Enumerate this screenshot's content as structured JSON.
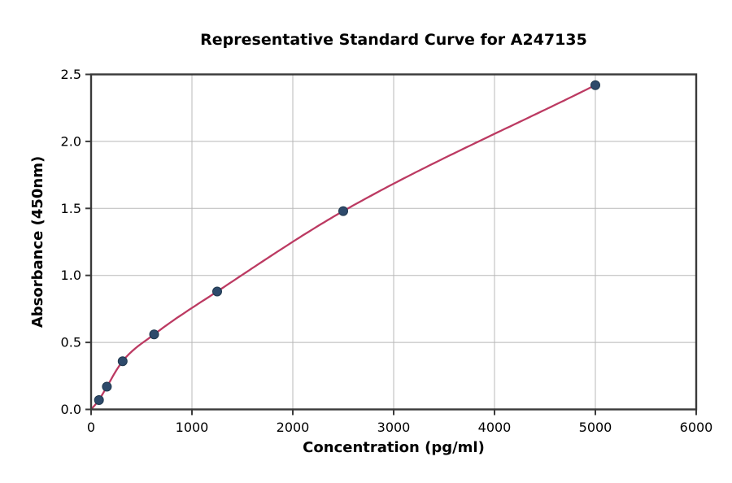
{
  "chart_data": {
    "type": "scatter",
    "title": "Representative Standard Curve for A247135",
    "xlabel": "Concentration (pg/ml)",
    "ylabel": "Absorbance (450nm)",
    "xlim": [
      0,
      6000
    ],
    "ylim": [
      0,
      2.5
    ],
    "grid": true,
    "legend": "none",
    "x_ticks": {
      "values": [
        0,
        1000,
        2000,
        3000,
        4000,
        5000,
        6000
      ],
      "labels": [
        "0",
        "1000",
        "2000",
        "3000",
        "4000",
        "5000",
        "6000"
      ]
    },
    "y_ticks": {
      "values": [
        0,
        0.5,
        1.0,
        1.5,
        2.0,
        2.5
      ],
      "labels": [
        "0.0",
        "0.5",
        "1.0",
        "1.5",
        "2.0",
        "2.5"
      ]
    },
    "series": [
      {
        "name": "standard-points",
        "marker": "circle",
        "points": [
          {
            "x": 78.13,
            "y": 0.07
          },
          {
            "x": 156.25,
            "y": 0.17
          },
          {
            "x": 312.5,
            "y": 0.36
          },
          {
            "x": 625,
            "y": 0.56
          },
          {
            "x": 1250,
            "y": 0.88
          },
          {
            "x": 2500,
            "y": 1.48
          },
          {
            "x": 5000,
            "y": 2.42
          }
        ]
      }
    ],
    "fit_curve": {
      "name": "fitted-standard-curve",
      "x_range": [
        0,
        5000
      ],
      "through_points": [
        [
          0,
          0
        ],
        [
          78.13,
          0.07
        ],
        [
          156.25,
          0.17
        ],
        [
          312.5,
          0.36
        ],
        [
          625,
          0.56
        ],
        [
          1250,
          0.88
        ],
        [
          2500,
          1.48
        ],
        [
          5000,
          2.42
        ]
      ]
    },
    "colors": {
      "curve": "#bc3a62",
      "marker": "#2e4a6b",
      "marker_edge": "#20394f",
      "grid": "#b8b8b8",
      "axis": "#3a3a3a",
      "text": "#000000",
      "background": "#ffffff"
    }
  }
}
